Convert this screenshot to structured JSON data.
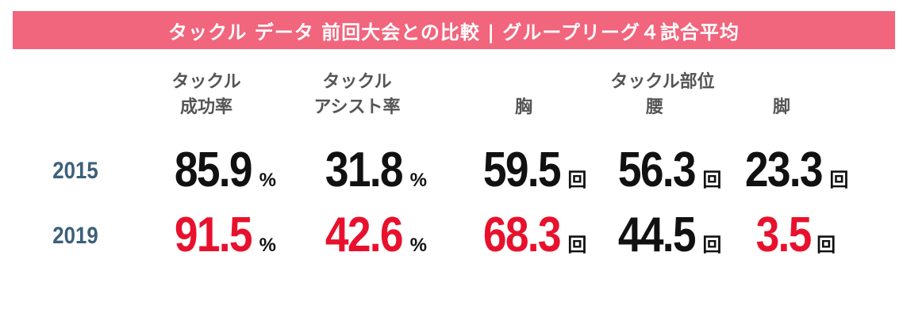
{
  "title": "タックル データ 前回大会との比較 | グループリーグ４試合平均",
  "headers": {
    "success_rate": [
      "タックル",
      "成功率"
    ],
    "assist_rate": [
      "タックル",
      "アシスト率"
    ],
    "body_part_group": "タックル部位",
    "chest": "胸",
    "waist": "腰",
    "legs": "脚"
  },
  "rows": [
    {
      "year": "2015",
      "values": [
        {
          "value": "85.9",
          "unit": "%",
          "color": "#111111"
        },
        {
          "value": "31.8",
          "unit": "%",
          "color": "#111111"
        },
        {
          "value": "59.5",
          "unit": "回",
          "color": "#111111"
        },
        {
          "value": "56.3",
          "unit": "回",
          "color": "#111111"
        },
        {
          "value": "23.3",
          "unit": "回",
          "color": "#111111"
        }
      ]
    },
    {
      "year": "2019",
      "values": [
        {
          "value": "91.5",
          "unit": "%",
          "color": "#e8112d"
        },
        {
          "value": "42.6",
          "unit": "%",
          "color": "#e8112d"
        },
        {
          "value": "68.3",
          "unit": "回",
          "color": "#e8112d"
        },
        {
          "value": "44.5",
          "unit": "回",
          "color": "#111111"
        },
        {
          "value": "3.5",
          "unit": "回",
          "color": "#e8112d"
        }
      ]
    }
  ],
  "colors": {
    "banner": "#f1657d",
    "year_text": "#3d6079",
    "highlight": "#e8112d",
    "default_value": "#111111",
    "header_text": "#555555"
  }
}
